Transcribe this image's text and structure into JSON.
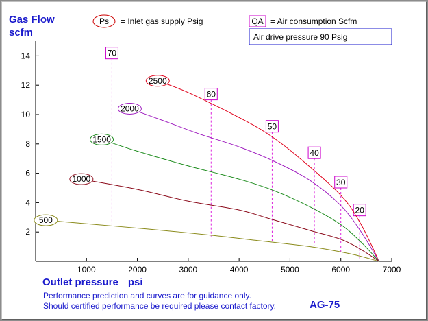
{
  "chart_data": {
    "type": "line",
    "title": "",
    "ylabel_line1": "Gas Flow",
    "ylabel_line2": "scfm",
    "xlabel_main": "Outlet pressure",
    "xlabel_unit": "psi",
    "xlim": [
      0,
      7000
    ],
    "ylim": [
      0,
      15
    ],
    "x_ticks": [
      1000,
      2000,
      3000,
      4000,
      5000,
      6000,
      7000
    ],
    "y_ticks": [
      2,
      4,
      6,
      8,
      10,
      12,
      14
    ],
    "grid": false,
    "legend": {
      "ps_symbol": "Ps",
      "ps_text": "= Inlet gas supply  Psig",
      "qa_symbol": "QA",
      "qa_text": "= Air consumption  Scfm",
      "drive_text": "Air drive pressure  90 Psig"
    },
    "series": [
      {
        "name": "2500",
        "color": "#e0001a",
        "x": [
          2400,
          3000,
          4000,
          4600,
          5200,
          6000,
          6400,
          6750
        ],
        "y": [
          12.3,
          11.5,
          9.8,
          8.6,
          7.0,
          4.5,
          2.5,
          0
        ]
      },
      {
        "name": "2000",
        "color": "#a020c0",
        "x": [
          1850,
          2500,
          3200,
          4000,
          4700,
          5400,
          6000,
          6400,
          6750
        ],
        "y": [
          10.4,
          9.6,
          8.7,
          7.8,
          6.8,
          5.5,
          3.8,
          2.0,
          0
        ]
      },
      {
        "name": "1500",
        "color": "#1a8a1a",
        "x": [
          1300,
          2000,
          3000,
          4000,
          4700,
          5400,
          6000,
          6400,
          6750
        ],
        "y": [
          8.3,
          7.5,
          6.5,
          5.6,
          4.8,
          3.7,
          2.5,
          1.3,
          0
        ]
      },
      {
        "name": "1000",
        "color": "#8b0a1a",
        "x": [
          900,
          2000,
          3000,
          4000,
          4600,
          5400,
          6000,
          6400,
          6750
        ],
        "y": [
          5.6,
          4.9,
          4.1,
          3.5,
          2.9,
          2.1,
          1.5,
          0.8,
          0
        ]
      },
      {
        "name": "500",
        "color": "#8a8a1a",
        "x": [
          200,
          1200,
          2200,
          3400,
          4400,
          5400,
          6200,
          6750
        ],
        "y": [
          2.8,
          2.5,
          2.2,
          1.8,
          1.4,
          1.0,
          0.5,
          0
        ]
      }
    ],
    "air_consumption": [
      {
        "label": "70",
        "x": 1500,
        "y_top": 13.8,
        "y_bottom": 2.5
      },
      {
        "label": "60",
        "x": 3450,
        "y_top": 11.0,
        "y_bottom": 1.7
      },
      {
        "label": "50",
        "x": 4650,
        "y_top": 8.8,
        "y_bottom": 1.3
      },
      {
        "label": "40",
        "x": 5480,
        "y_top": 7.0,
        "y_bottom": 1.1
      },
      {
        "label": "30",
        "x": 6000,
        "y_top": 5.0,
        "y_bottom": 0.6
      },
      {
        "label": "20",
        "x": 6370,
        "y_top": 3.1,
        "y_bottom": 0.2
      }
    ],
    "series_label_positions": [
      {
        "label": "2500",
        "x": 2400,
        "y": 12.3
      },
      {
        "label": "2000",
        "x": 1850,
        "y": 10.4
      },
      {
        "label": "1500",
        "x": 1300,
        "y": 8.3
      },
      {
        "label": "1000",
        "x": 900,
        "y": 5.6
      },
      {
        "label": "500",
        "x": 200,
        "y": 2.8
      }
    ]
  },
  "footer": {
    "line1": "Performance prediction and curves are for guidance only.",
    "line2": "Should certified performance be required please contact factory.",
    "model": "AG-75"
  }
}
